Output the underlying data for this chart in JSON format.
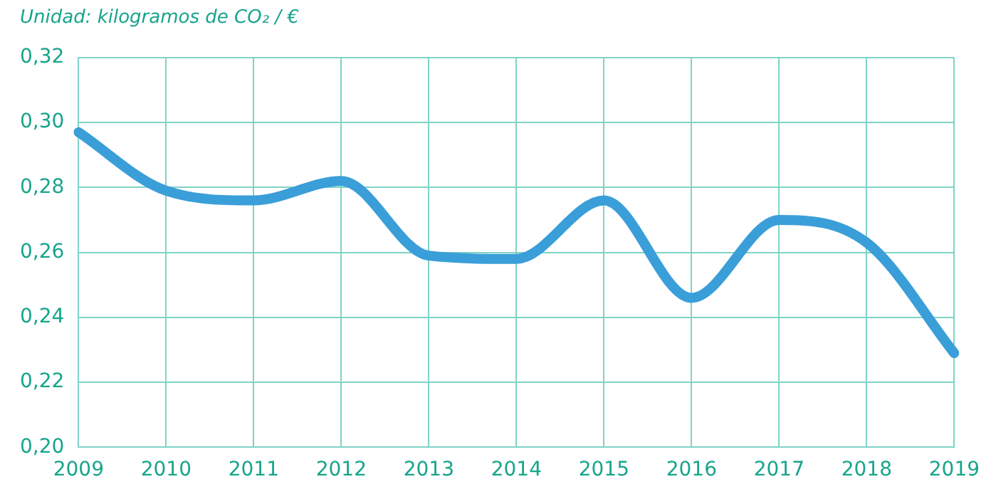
{
  "chart_data": {
    "type": "line",
    "title": "Unidad: kilogramos de CO₂ / €",
    "categories": [
      "2009",
      "2010",
      "2011",
      "2012",
      "2013",
      "2014",
      "2015",
      "2016",
      "2017",
      "2018",
      "2019"
    ],
    "series": [
      {
        "color": "#3a9ed8",
        "values": [
          0.297,
          0.279,
          0.276,
          0.282,
          0.259,
          0.258,
          0.276,
          0.246,
          0.27,
          0.263,
          0.229
        ]
      }
    ],
    "ylim": [
      0.2,
      0.32
    ],
    "yticks": [
      {
        "value": 0.2,
        "label": "0,20"
      },
      {
        "value": 0.22,
        "label": "0,22"
      },
      {
        "value": 0.24,
        "label": "0,24"
      },
      {
        "value": 0.26,
        "label": "0,26"
      },
      {
        "value": 0.28,
        "label": "0,28"
      },
      {
        "value": 0.3,
        "label": "0,30"
      },
      {
        "value": 0.32,
        "label": "0,32"
      }
    ],
    "grid": true,
    "legend": false,
    "marker": "none",
    "line_style": "solid"
  }
}
